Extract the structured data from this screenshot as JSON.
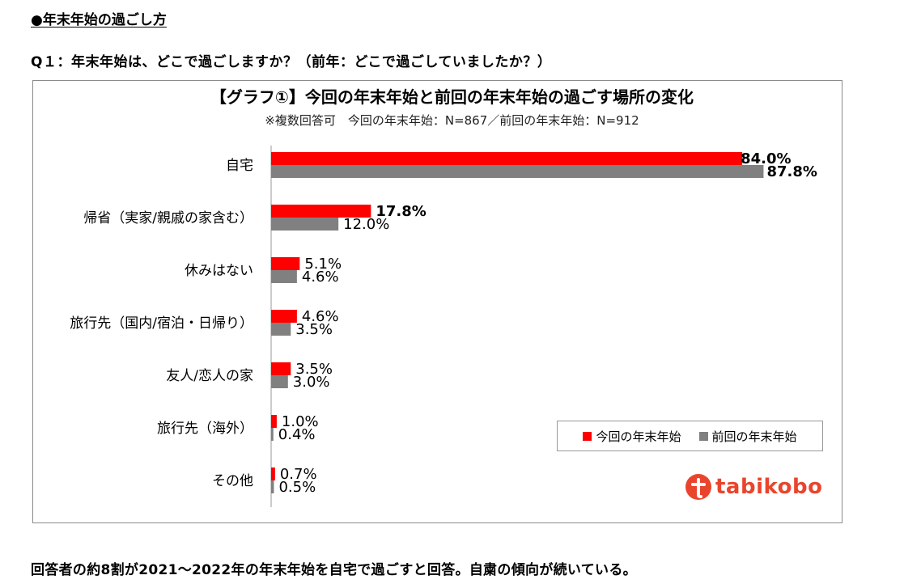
{
  "header": {
    "section_title": "●年末年始の過ごし方",
    "question": "Q１：年末年始は、どこで過ごしますか？（前年：どこで過ごしていましたか？）"
  },
  "chart_data": {
    "type": "bar",
    "orientation": "horizontal",
    "title": "【グラフ①】今回の年末年始と前回の年末年始の過ごす場所の変化",
    "subtitle": "※複数回答可　今回の年末年始：N=867／前回の年末年始：N=912",
    "categories": [
      "自宅",
      "帰省（実家/親戚の家含む）",
      "休みはない",
      "旅行先（国内/宿泊・日帰り）",
      "友人/恋人の家",
      "旅行先（海外）",
      "その他"
    ],
    "series": [
      {
        "name": "今回の年末年始",
        "color": "#ff0000",
        "values": [
          84.0,
          17.8,
          5.1,
          4.6,
          3.5,
          1.0,
          0.7
        ],
        "labels": [
          "84.0%",
          "17.8%",
          "5.1%",
          "4.6%",
          "3.5%",
          "1.0%",
          "0.7%"
        ],
        "bold_labels": [
          true,
          true,
          false,
          false,
          false,
          false,
          false
        ]
      },
      {
        "name": "前回の年末年始",
        "color": "#808080",
        "values": [
          87.8,
          12.0,
          4.6,
          3.5,
          3.0,
          0.4,
          0.5
        ],
        "labels": [
          "87.8%",
          "12.0%",
          "4.6%",
          "3.5%",
          "3.0%",
          "0.4%",
          "0.5%"
        ],
        "bold_labels": [
          true,
          false,
          false,
          false,
          false,
          false,
          false
        ]
      }
    ],
    "xlim": [
      0,
      100
    ],
    "grid": false,
    "legend_position": "bottom-right"
  },
  "legend": {
    "current_label": "今回の年末年始",
    "previous_label": "前回の年末年始",
    "current_color": "#ff0000",
    "previous_color": "#808080"
  },
  "logo": {
    "text": "tabikobo",
    "color": "#e9452c"
  },
  "footer": {
    "note": "回答者の約8割が2021～2022年の年末年始を自宅で過ごすと回答。自粛の傾向が続いている。"
  }
}
